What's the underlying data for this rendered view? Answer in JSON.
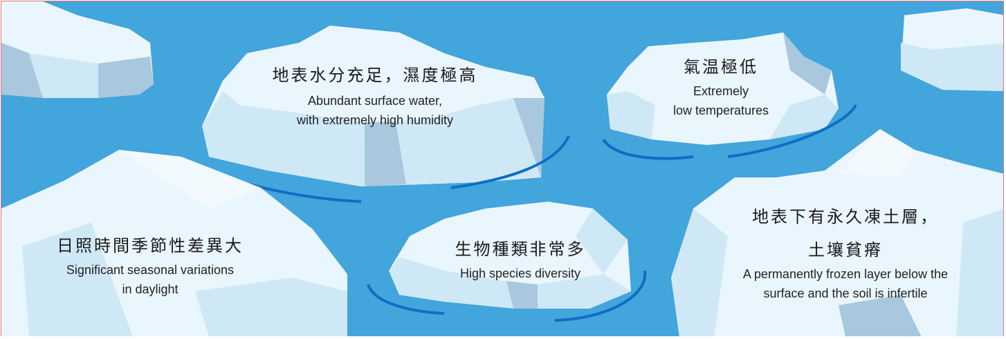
{
  "colors": {
    "water": "#42a5dc",
    "ice_light": "#eaf6fd",
    "ice_mid": "#cfe8f6",
    "ice_shadow": "#a9c8dd",
    "wave": "#0d6ec4",
    "border": "#e57373"
  },
  "labels": {
    "surface_water": {
      "zh": "地表水分充足，濕度極高",
      "en_line1": "Abundant surface water,",
      "en_line2": "with extremely high humidity"
    },
    "low_temp": {
      "zh": "氣温極低",
      "en_line1": "Extremely",
      "en_line2": "low temperatures"
    },
    "daylight": {
      "zh": "日照時間季節性差異大",
      "en_line1": "Significant seasonal variations",
      "en_line2": "in daylight"
    },
    "species": {
      "zh": "生物種類非常多",
      "en_line1": "High species diversity"
    },
    "permafrost": {
      "zh_line1": "地表下有永久凍土層，",
      "zh_line2": "土壤貧瘠",
      "en_line1": "A permanently frozen layer below the",
      "en_line2": "surface and the soil is infertile"
    }
  }
}
